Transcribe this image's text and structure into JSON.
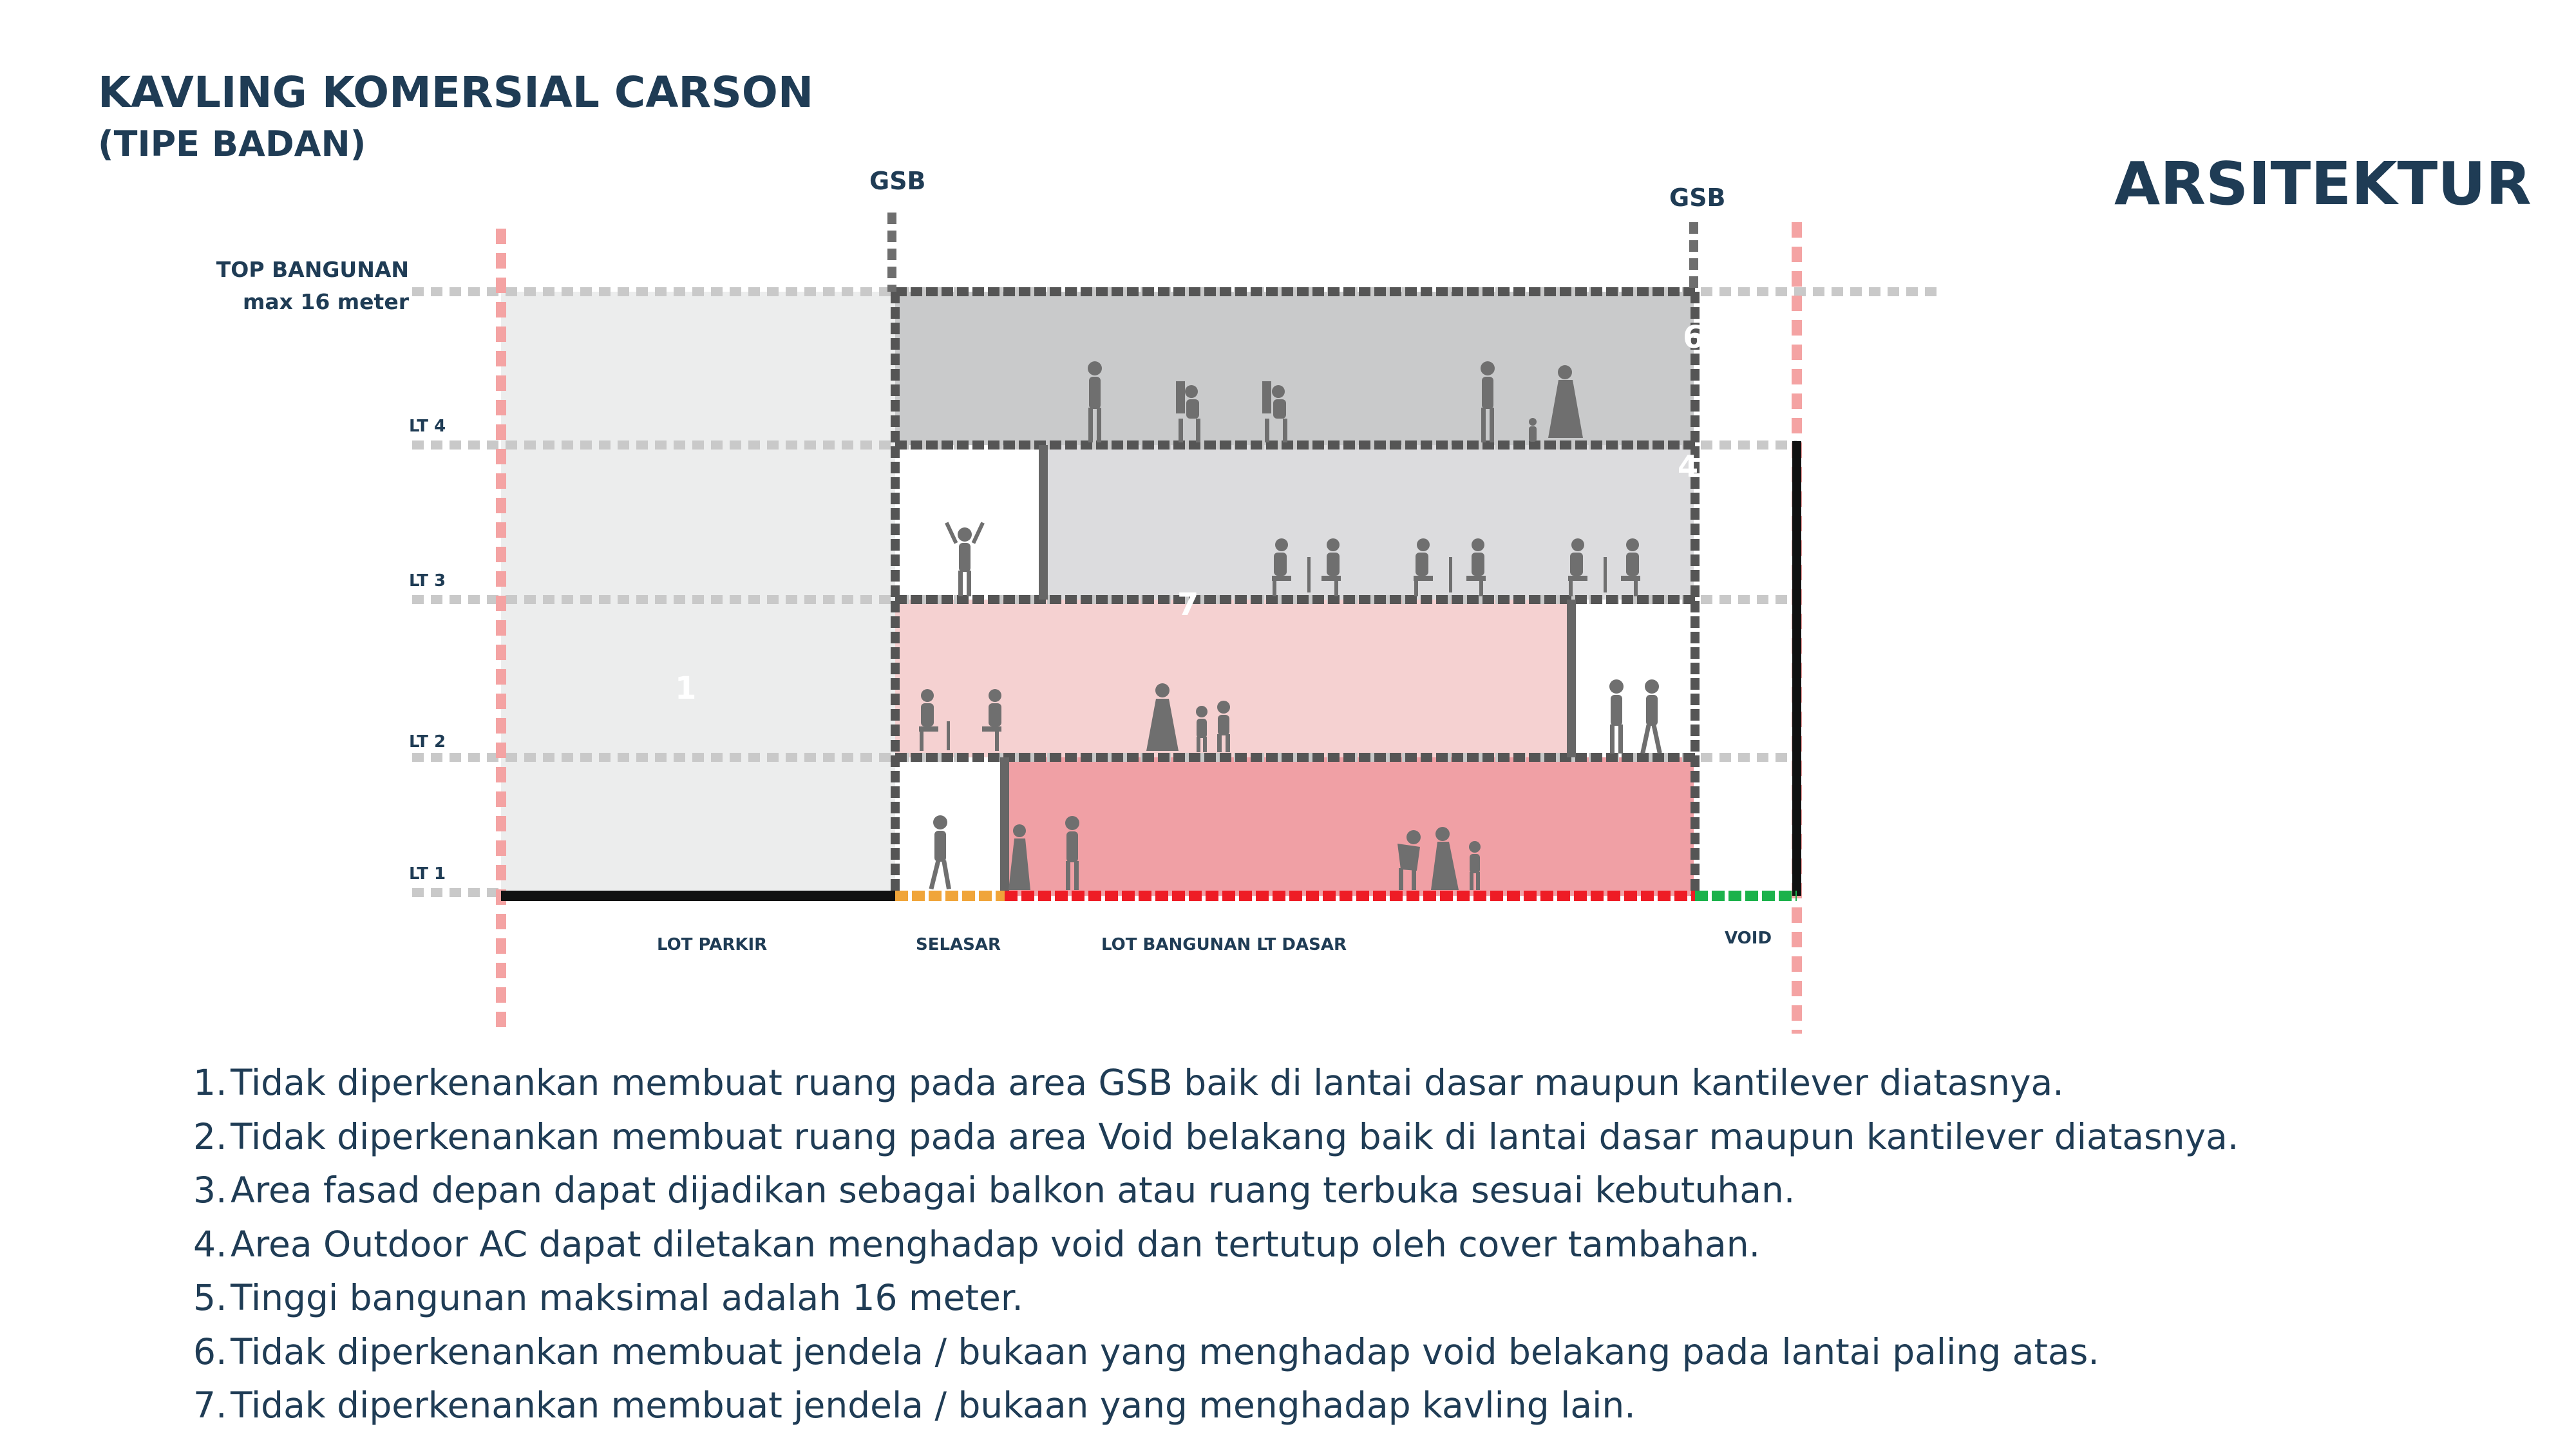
{
  "header": {
    "title": "KAVLING KOMERSIAL CARSON",
    "subtitle": "(TIPE BADAN)",
    "discipline": "ARSITEKTUR"
  },
  "section": {
    "gsb_left": "GSB",
    "gsb_right": "GSB",
    "top_label_1": "TOP BANGUNAN",
    "top_label_2": "max 16 meter",
    "levels": [
      "LT 4",
      "LT 3",
      "LT 2",
      "LT 1"
    ],
    "ground_zones": [
      "LOT PARKIR",
      "SELASAR",
      "LOT BANGUNAN LT DASAR",
      "VOID"
    ],
    "markers": [
      "1",
      "4",
      "6",
      "7"
    ],
    "colors": {
      "setback_red": "#f4a3a3",
      "gsb_gray": "#6e6e6e",
      "top_floor": "#c9cacb",
      "floor3": "#dcdcde",
      "floor2": "#f5d1d1",
      "floor1": "#f0a0a5",
      "parking": "#eceded",
      "ground_parkir": "#111111",
      "ground_selasar": "#f0a53a",
      "ground_building": "#ee1c25",
      "ground_void": "#1bb24b"
    }
  },
  "notes": [
    {
      "num": "1.",
      "text": "Tidak diperkenankan membuat ruang pada area GSB baik di lantai dasar maupun kantilever diatasnya."
    },
    {
      "num": "2.",
      "text": "Tidak diperkenankan membuat ruang pada area Void belakang baik di lantai dasar maupun kantilever diatasnya."
    },
    {
      "num": "3.",
      "text": "Area fasad depan dapat dijadikan sebagai balkon atau ruang terbuka sesuai kebutuhan."
    },
    {
      "num": "4.",
      "text": "Area Outdoor AC dapat diletakan menghadap void dan tertutup oleh cover tambahan."
    },
    {
      "num": "5.",
      "text": "Tinggi bangunan maksimal adalah 16 meter."
    },
    {
      "num": "6.",
      "text": "Tidak diperkenankan membuat jendela / bukaan yang menghadap void belakang pada lantai paling atas."
    },
    {
      "num": "7.",
      "text": "Tidak diperkenankan membuat jendela / bukaan yang menghadap kavling lain."
    }
  ]
}
